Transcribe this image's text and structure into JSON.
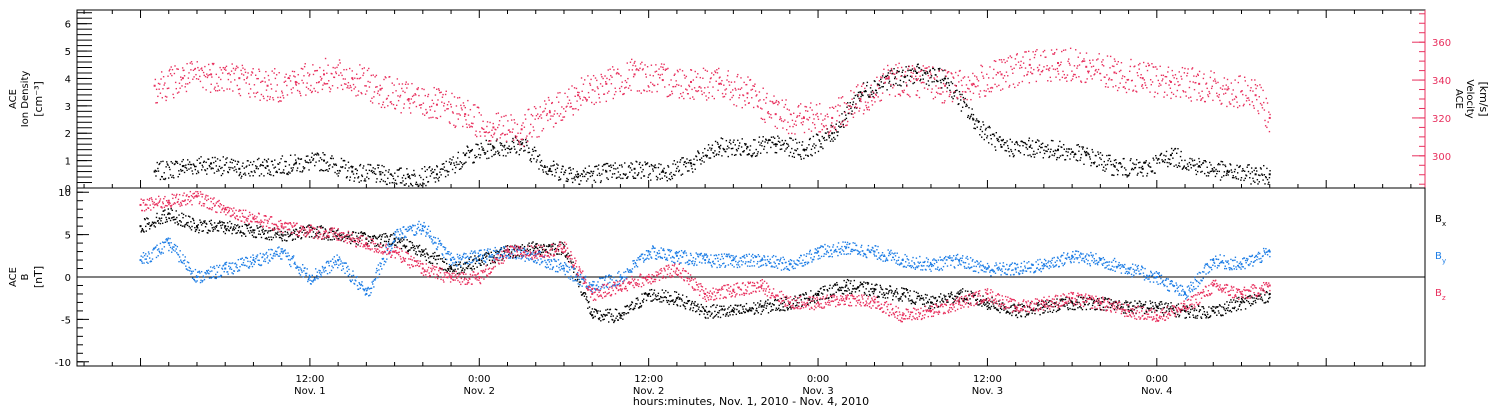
{
  "colors": {
    "black": "#000000",
    "pink": "#e8305e",
    "blue": "#1e7ee6"
  },
  "chart_data": [
    {
      "type": "scatter",
      "panel": "top",
      "ylabel_left": [
        "ACE",
        "Ion Density",
        "[cm⁻³]"
      ],
      "ylabel_right": [
        "ACE",
        "Velocity",
        "[km/s]"
      ],
      "ylim_left": [
        0,
        6.5
      ],
      "ylim_right": [
        283,
        377
      ],
      "yticks_left": [
        "0",
        "1",
        "2",
        "3",
        "4",
        "5",
        "6"
      ],
      "yticks_right": [
        "300",
        "320",
        "340",
        "360"
      ],
      "grid": false,
      "series": [
        {
          "name": "Ion Density",
          "axis": "left",
          "color": "#000000",
          "x_hours": [
            1,
            3,
            5,
            7,
            9,
            11,
            13,
            15,
            17,
            19,
            21,
            23,
            25,
            27,
            29,
            31,
            33,
            35,
            37,
            39,
            41,
            43,
            45,
            47,
            49,
            51,
            53,
            55,
            57,
            59,
            61,
            63,
            65,
            67,
            69,
            71,
            73,
            75,
            77,
            79,
            80
          ],
          "y": [
            0.6,
            0.8,
            0.9,
            0.7,
            0.8,
            0.9,
            1.0,
            0.6,
            0.5,
            0.4,
            0.5,
            1.2,
            1.5,
            1.6,
            0.7,
            0.5,
            0.6,
            0.7,
            0.6,
            0.9,
            1.5,
            1.5,
            1.6,
            1.4,
            2.0,
            3.5,
            4.0,
            4.2,
            4.0,
            2.5,
            1.5,
            1.5,
            1.4,
            1.2,
            0.8,
            0.7,
            1.2,
            0.8,
            0.6,
            0.5,
            0.5
          ]
        },
        {
          "name": "Velocity",
          "axis": "right",
          "color": "#e8305e",
          "x_hours": [
            1,
            3,
            5,
            7,
            9,
            11,
            13,
            15,
            17,
            19,
            21,
            23,
            25,
            27,
            29,
            31,
            33,
            35,
            37,
            39,
            41,
            43,
            45,
            47,
            49,
            51,
            53,
            55,
            57,
            59,
            61,
            63,
            65,
            67,
            69,
            71,
            73,
            75,
            77,
            79,
            80
          ],
          "y": [
            337,
            341,
            343,
            341,
            337,
            339,
            343,
            341,
            335,
            330,
            327,
            322,
            315,
            314,
            323,
            332,
            338,
            343,
            340,
            339,
            338,
            333,
            322,
            320,
            320,
            330,
            341,
            340,
            337,
            338,
            343,
            348,
            349,
            347,
            344,
            341,
            339,
            338,
            335,
            332,
            320
          ]
        }
      ]
    },
    {
      "type": "scatter",
      "panel": "bottom",
      "ylabel": [
        "ACE",
        "B",
        "[nT]"
      ],
      "ylim": [
        -10.5,
        10.5
      ],
      "yticks": [
        "-10",
        "-5",
        "0",
        "5",
        "10"
      ],
      "zero_line": true,
      "grid": false,
      "legend": {
        "placement": "right",
        "items": [
          {
            "label": "B",
            "sub": "x",
            "color": "#000000"
          },
          {
            "label": "B",
            "sub": "y",
            "color": "#1e7ee6"
          },
          {
            "label": "B",
            "sub": "z",
            "color": "#e8305e"
          }
        ]
      },
      "series": [
        {
          "name": "Bx",
          "color": "#000000",
          "x_hours": [
            0,
            2,
            4,
            6,
            8,
            10,
            12,
            14,
            16,
            18,
            20,
            22,
            24,
            26,
            28,
            30,
            32,
            34,
            36,
            38,
            40,
            42,
            44,
            46,
            48,
            50,
            52,
            54,
            56,
            58,
            60,
            62,
            64,
            66,
            68,
            70,
            72,
            74,
            76,
            78,
            80
          ],
          "y": [
            6,
            7.5,
            6,
            6,
            5.5,
            5,
            5.5,
            5,
            4.5,
            4.5,
            3,
            1,
            2,
            3,
            3.5,
            3.5,
            -4.5,
            -4.5,
            -2,
            -2.5,
            -4,
            -4,
            -3.5,
            -3,
            -2,
            -1,
            -1.5,
            -2,
            -3,
            -2,
            -3,
            -4,
            -3.5,
            -3,
            -3,
            -3.5,
            -3.5,
            -4,
            -4,
            -3,
            -2
          ]
        },
        {
          "name": "By",
          "color": "#1e7ee6",
          "x_hours": [
            0,
            2,
            4,
            6,
            8,
            10,
            12,
            14,
            16,
            18,
            20,
            22,
            24,
            26,
            28,
            30,
            32,
            34,
            36,
            38,
            40,
            42,
            44,
            46,
            48,
            50,
            52,
            54,
            56,
            58,
            60,
            62,
            64,
            66,
            68,
            70,
            72,
            74,
            76,
            78,
            80
          ],
          "y": [
            2,
            4,
            0,
            1,
            2,
            3,
            0,
            2,
            -2,
            5,
            6,
            2,
            2.5,
            3,
            2.5,
            1,
            -1,
            0,
            3,
            2.5,
            2,
            2,
            2,
            1.5,
            3,
            3.5,
            3,
            2,
            1.5,
            2,
            1,
            1,
            1.5,
            2.5,
            2,
            1,
            0,
            -2,
            2,
            1.5,
            3
          ]
        },
        {
          "name": "Bz",
          "color": "#e8305e",
          "x_hours": [
            0,
            2,
            4,
            6,
            8,
            10,
            12,
            14,
            16,
            18,
            20,
            22,
            24,
            26,
            28,
            30,
            32,
            34,
            36,
            38,
            40,
            42,
            44,
            46,
            48,
            50,
            52,
            54,
            56,
            58,
            60,
            62,
            64,
            66,
            68,
            70,
            72,
            74,
            76,
            78,
            80
          ],
          "y": [
            8.5,
            9,
            9.5,
            8,
            7,
            6,
            5.5,
            5,
            4,
            3,
            1,
            0,
            0,
            3,
            3,
            3.5,
            -2,
            -1,
            0,
            1,
            -2,
            -1.5,
            -1,
            -3,
            -3,
            -2.5,
            -3,
            -4.5,
            -4,
            -3,
            -2,
            -3.5,
            -3,
            -2.5,
            -3,
            -4,
            -4.5,
            -3.5,
            -1,
            -2,
            -1
          ]
        }
      ]
    }
  ],
  "x_axis": {
    "range_hours": [
      -4.5,
      91
    ],
    "tick_labels": [
      {
        "time": "12:00",
        "day": "Nov. 1",
        "hour": 12
      },
      {
        "time": "0:00",
        "day": "Nov. 2",
        "hour": 24
      },
      {
        "time": "12:00",
        "day": "Nov. 2",
        "hour": 36
      },
      {
        "time": "0:00",
        "day": "Nov. 3",
        "hour": 48
      },
      {
        "time": "12:00",
        "day": "Nov. 3",
        "hour": 60
      },
      {
        "time": "0:00",
        "day": "Nov. 4",
        "hour": 72
      }
    ],
    "label": "hours:minutes, Nov.  1, 2010 - Nov.  4, 2010"
  }
}
